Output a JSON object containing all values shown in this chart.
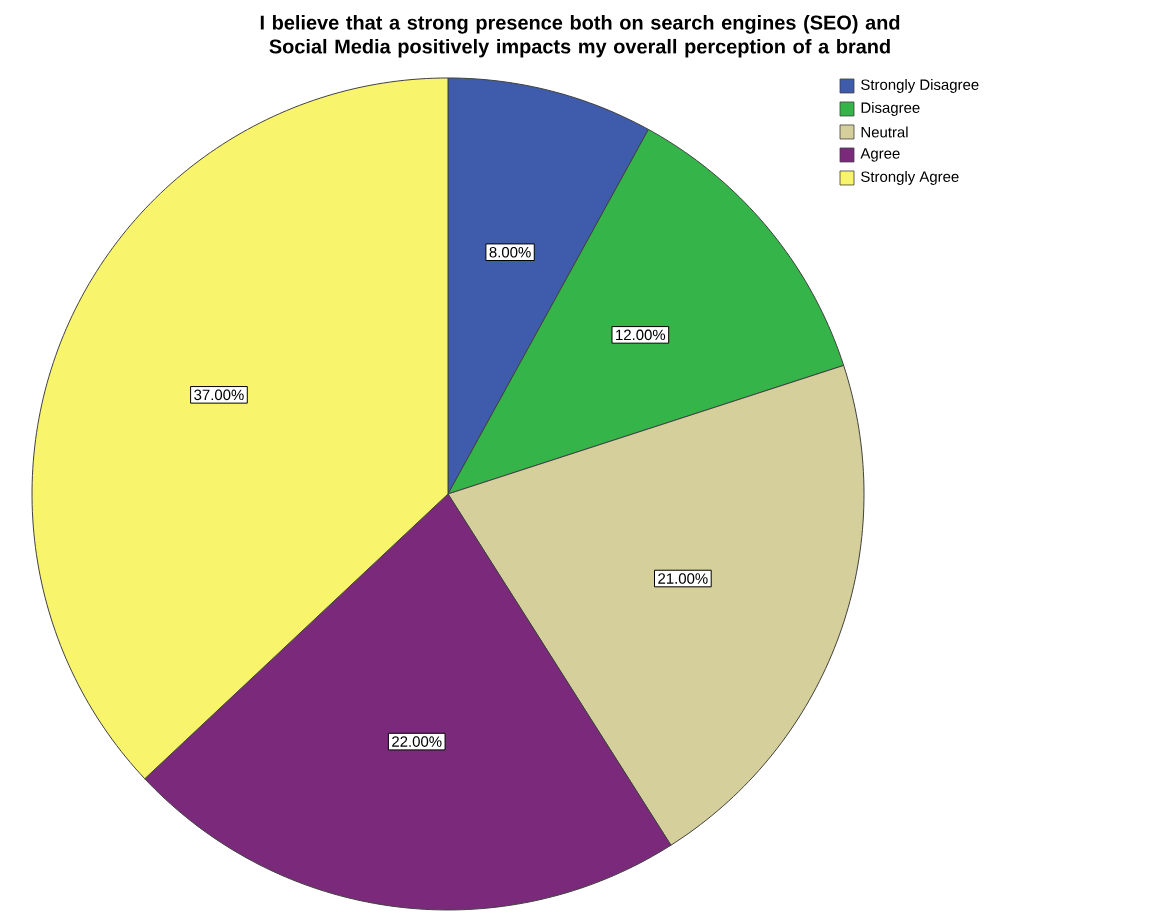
{
  "chart_data": {
    "type": "pie",
    "title": "I believe that a strong presence both on search engines (SEO) and Social Media positively impacts my overall perception of a brand",
    "categories": [
      "Strongly Disagree",
      "Disagree",
      "Neutral",
      "Agree",
      "Strongly Agree"
    ],
    "values": [
      8,
      12,
      21,
      22,
      37
    ],
    "value_labels": [
      "8.00%",
      "12.00%",
      "21.00%",
      "22.00%",
      "37.00%"
    ],
    "colors": [
      "#3f5bab",
      "#35b44a",
      "#d4cf9b",
      "#7b2a7b",
      "#f8f46b"
    ],
    "legend": "top right"
  }
}
